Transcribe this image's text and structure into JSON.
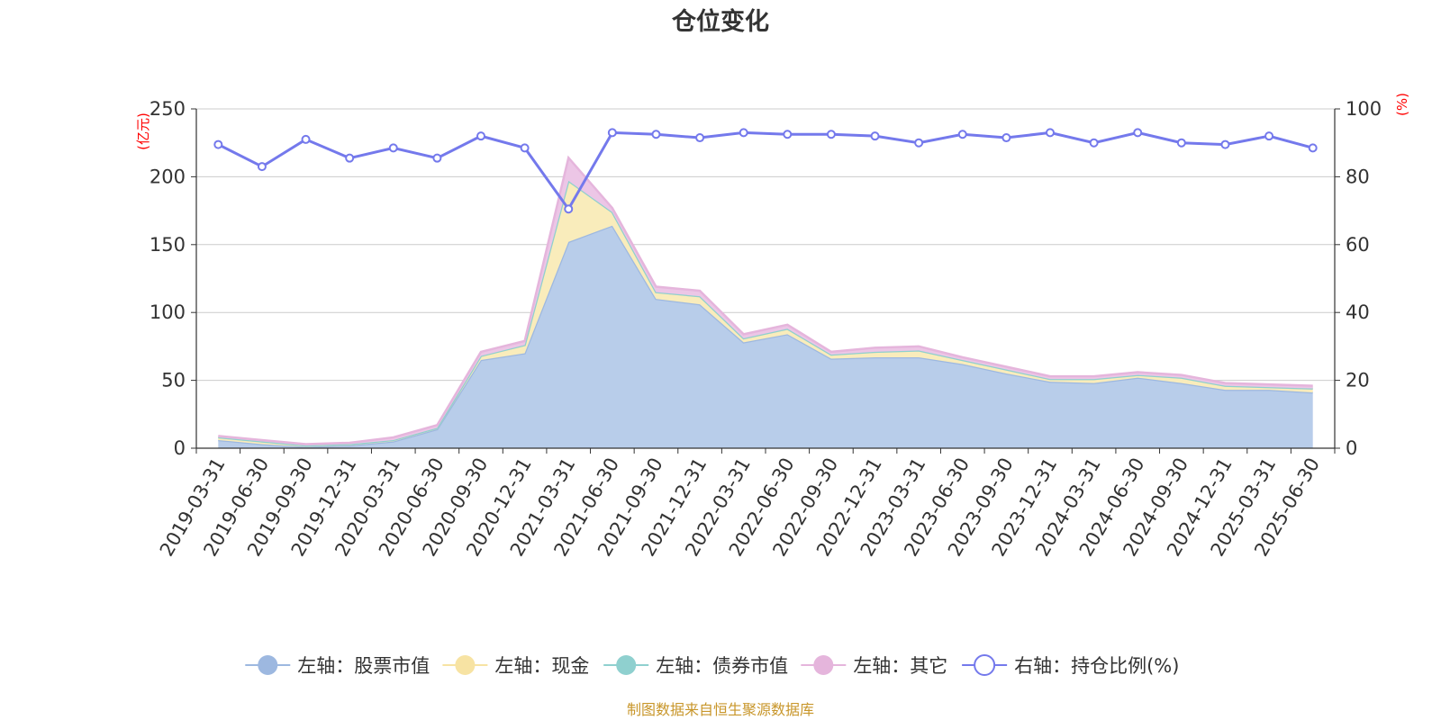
{
  "chart_data": {
    "type": "area",
    "title": "仓位变化",
    "left_unit": "(亿元)",
    "right_unit": "(%)",
    "source": "制图数据来自恒生聚源数据库",
    "ylim_left": [
      0,
      250
    ],
    "ylim_right": [
      0,
      100
    ],
    "left_ticks": [
      "0",
      "50",
      "100",
      "150",
      "200",
      "250"
    ],
    "right_ticks": [
      "0",
      "20",
      "40",
      "60",
      "80",
      "100"
    ],
    "grid": true,
    "legend_position": "bottom",
    "categories": [
      "2019-03-31",
      "2019-06-30",
      "2019-09-30",
      "2019-12-31",
      "2020-03-31",
      "2020-06-30",
      "2020-09-30",
      "2020-12-31",
      "2021-03-31",
      "2021-06-30",
      "2021-09-30",
      "2021-12-31",
      "2022-03-31",
      "2022-06-30",
      "2022-09-30",
      "2022-12-31",
      "2023-03-31",
      "2023-06-30",
      "2023-09-30",
      "2023-12-31",
      "2024-03-31",
      "2024-06-30",
      "2024-09-30",
      "2024-12-31",
      "2025-03-31",
      "2025-06-30"
    ],
    "series": [
      {
        "name": "左轴：股票市值",
        "axis": "left",
        "color": "#9db8e0",
        "fill": "#b8cdea",
        "values": [
          6,
          3,
          1,
          2,
          5,
          14,
          65,
          70,
          152,
          164,
          110,
          106,
          78,
          84,
          66,
          67,
          67,
          62,
          55,
          49,
          48,
          52,
          48,
          43,
          43,
          41
        ]
      },
      {
        "name": "左轴：现金",
        "axis": "left",
        "color": "#f7e3a3",
        "fill": "#f9ecbb",
        "values": [
          2,
          2,
          1,
          1,
          1,
          1,
          3,
          6,
          45,
          10,
          5,
          6,
          3,
          4,
          3,
          4,
          5,
          3,
          3,
          2,
          3,
          2,
          4,
          3,
          2,
          3
        ]
      },
      {
        "name": "左轴：债券市值",
        "axis": "left",
        "color": "#8fd0cf",
        "fill": "#a7dad9",
        "values": [
          0,
          0,
          0,
          0,
          0,
          0,
          0,
          0,
          0,
          0,
          0,
          0,
          0,
          0,
          0,
          0,
          0,
          0,
          0,
          0,
          0,
          0,
          0,
          0,
          0,
          0
        ]
      },
      {
        "name": "左轴：其它",
        "axis": "left",
        "color": "#e5b5dc",
        "fill": "#ecc6e6",
        "values": [
          1,
          1,
          1,
          1,
          2,
          2,
          3,
          3,
          17,
          3,
          4,
          4,
          3,
          3,
          2,
          3,
          3,
          2,
          2,
          2,
          2,
          2,
          2,
          2,
          2,
          2
        ]
      },
      {
        "name": "右轴：持仓比例(%)",
        "axis": "right",
        "color": "#7479ec",
        "values": [
          89.5,
          83,
          91,
          85.5,
          88.5,
          85.5,
          92,
          88.5,
          70.5,
          93,
          92.5,
          91.5,
          93,
          92.5,
          92.5,
          92,
          90,
          92.5,
          91.5,
          93,
          90,
          93,
          90,
          89.5,
          92,
          88.5
        ]
      }
    ]
  }
}
